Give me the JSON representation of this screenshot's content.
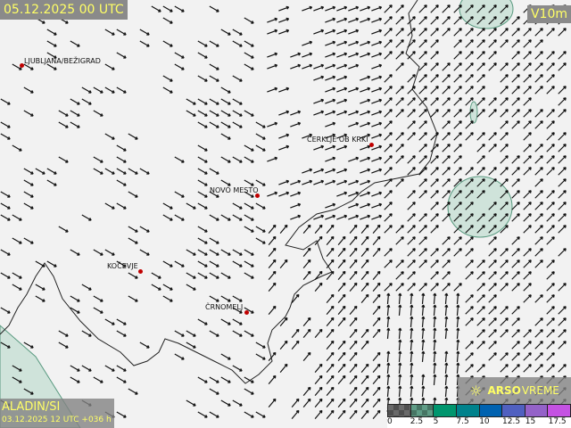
{
  "header": {
    "valid_time": "05.12.2025 00 UTC",
    "variable": "V10m"
  },
  "model": {
    "name": "ALADIN/SI",
    "run": "03.12.2025 12 UTC +036 h"
  },
  "brand": {
    "icon": "sun-icon",
    "strong": "ARSO",
    "rest": "VREME"
  },
  "cities": [
    {
      "name": "LJUBLJANA/BEŽIGRAD"
    },
    {
      "name": "NOVO MESTO"
    },
    {
      "name": "CERKLJE OB KRKI"
    },
    {
      "name": "KOČEVJE"
    },
    {
      "name": "ČRNOMELJ"
    }
  ],
  "legend": {
    "ticks": [
      "0",
      "2.5",
      "5",
      "7.5",
      "10",
      "12.5",
      "15",
      "17.5"
    ],
    "colors": [
      "#6a6a6a",
      "#5f9c86",
      "#00966e",
      "#00828c",
      "#0062b0",
      "#5060c0",
      "#9462c8",
      "#c452e2"
    ]
  }
}
